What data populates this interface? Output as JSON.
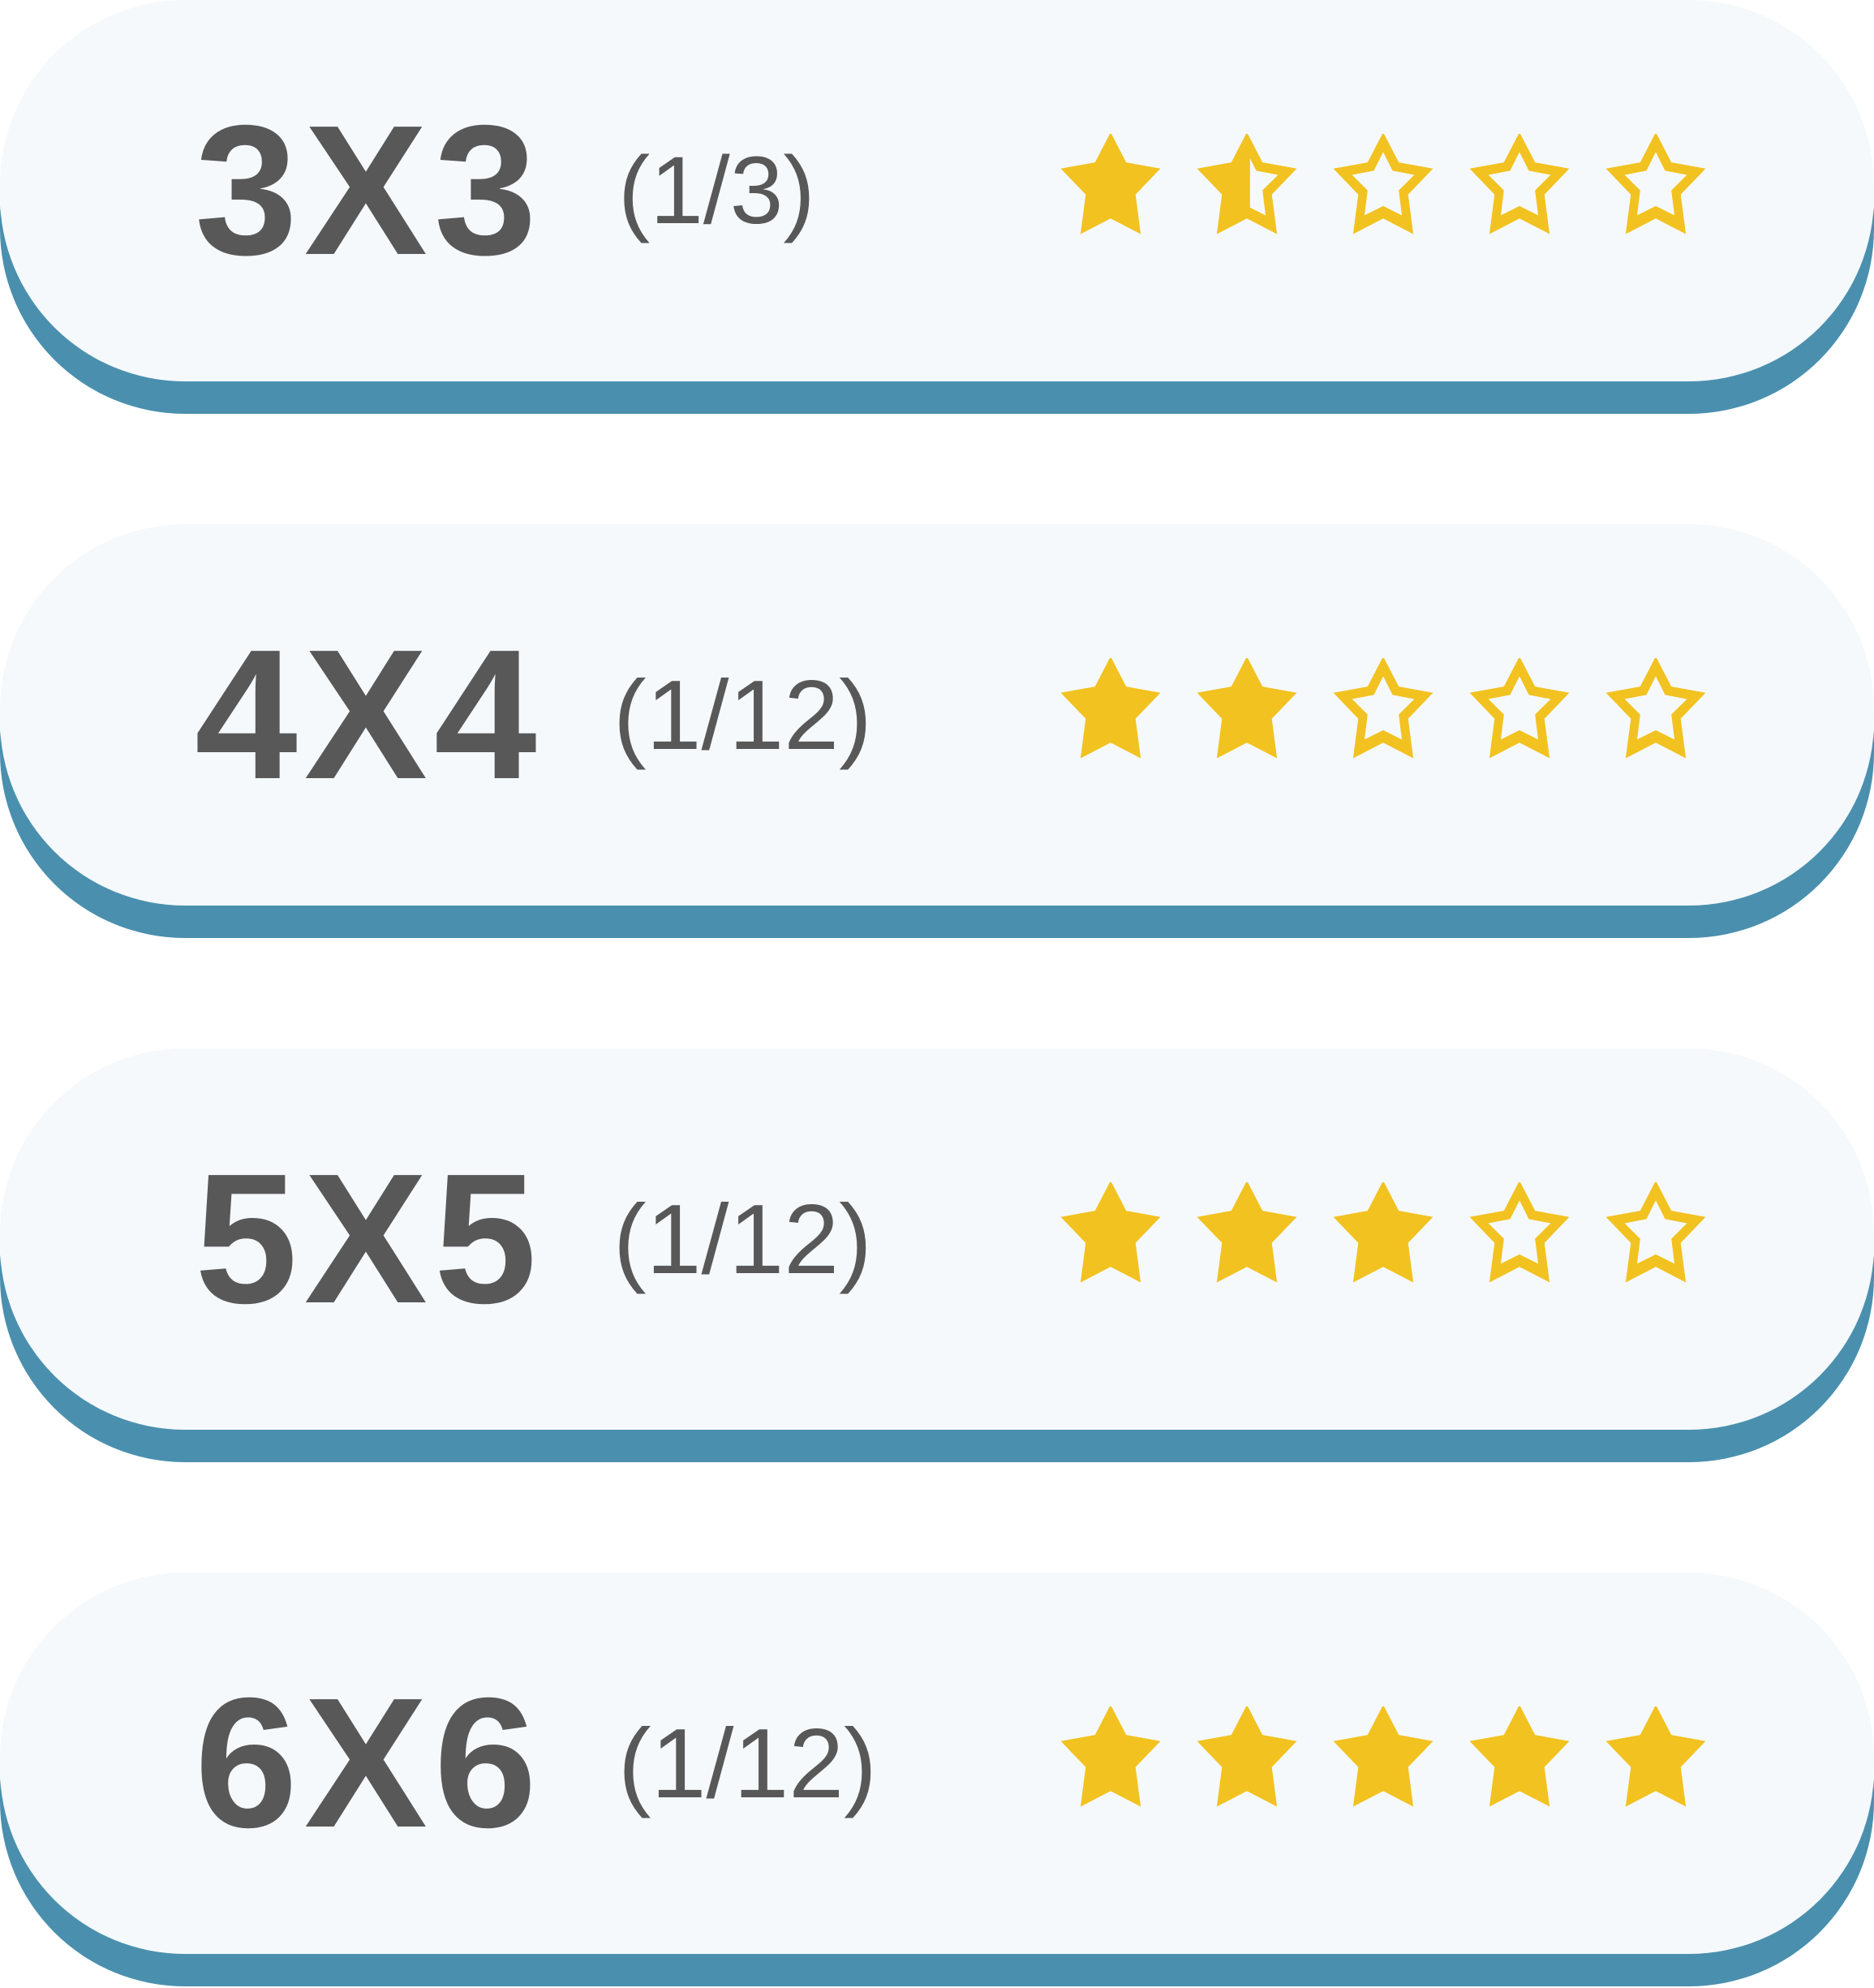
{
  "colors": {
    "card_face": "#f5f9fc",
    "card_shadow": "#4a90ae",
    "text": "#595859",
    "star": "#f2c220"
  },
  "levels": [
    {
      "size": "3X3",
      "progress": "(1/3)",
      "rating": 1.5,
      "max_rating": 5
    },
    {
      "size": "4X4",
      "progress": "(1/12)",
      "rating": 2,
      "max_rating": 5
    },
    {
      "size": "5X5",
      "progress": "(1/12)",
      "rating": 3,
      "max_rating": 5
    },
    {
      "size": "6X6",
      "progress": "(1/12)",
      "rating": 5,
      "max_rating": 5
    }
  ]
}
